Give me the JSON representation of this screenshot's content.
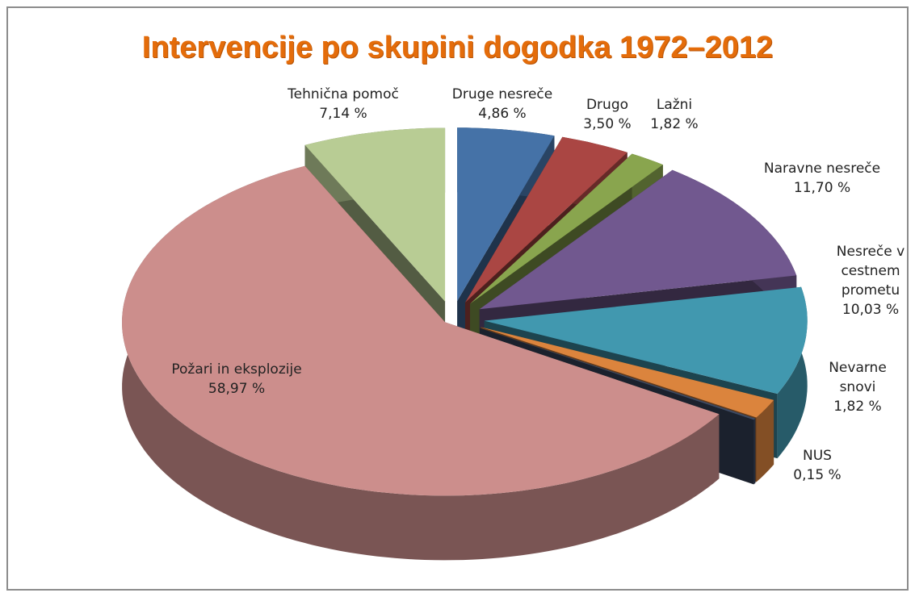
{
  "chart_data": {
    "type": "pie",
    "title": "Intervencije po skupini dogodka 1972–2012",
    "categories": [
      "Druge nesreče",
      "Drugo",
      "Lažni",
      "Naravne nesreče",
      "Nesreče v cestnem prometu",
      "Nevarne snovi",
      "NUS",
      "Požari in eksplozije",
      "Tehnična pomoč"
    ],
    "values": [
      4.86,
      3.5,
      1.82,
      11.7,
      10.03,
      1.82,
      0.15,
      58.97,
      7.14
    ],
    "value_labels": [
      "4,86 %",
      "3,50 %",
      "1,82 %",
      "11,70 %",
      "10,03 %",
      "1,82 %",
      "0,15 %",
      "58,97 %",
      "7,14 %"
    ],
    "colors": [
      "#4572a7",
      "#aa4643",
      "#89a54e",
      "#71588f",
      "#4198af",
      "#db843d",
      "#3d4a63",
      "#cc8e8c",
      "#b8cc94"
    ]
  }
}
